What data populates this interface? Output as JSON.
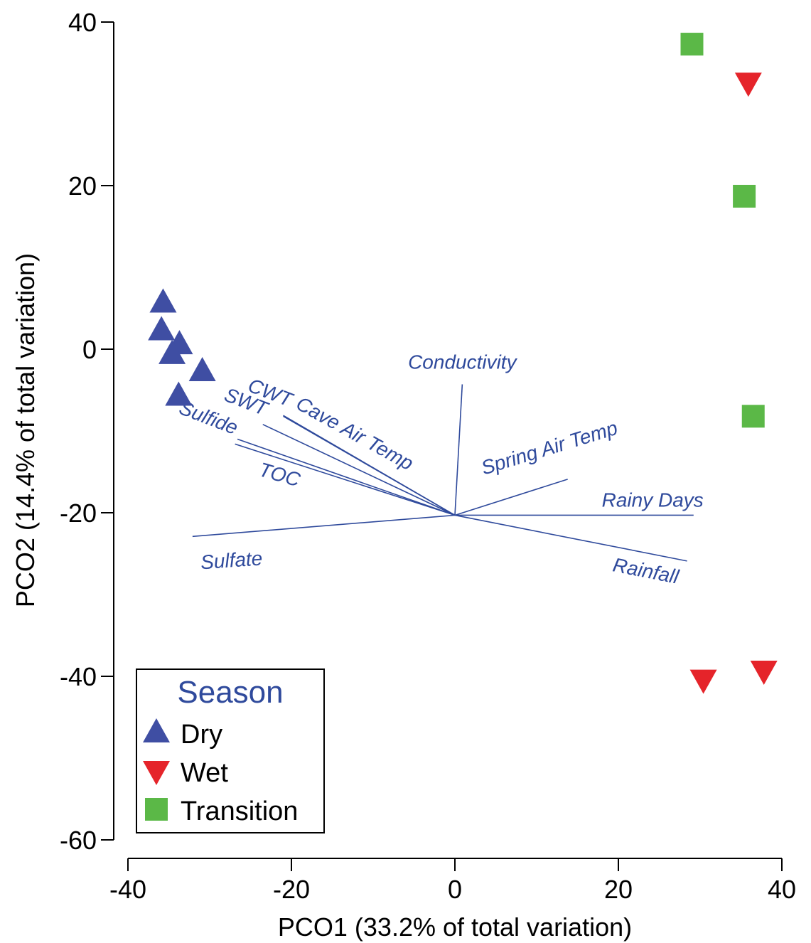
{
  "chart_data": {
    "type": "scatter",
    "title": "",
    "xlabel": "PCO1 (33.2% of total variation)",
    "ylabel": "PCO2 (14.4% of total variation)",
    "xlim": [
      -40,
      40
    ],
    "ylim": [
      -60,
      40
    ],
    "x_ticks": [
      -40,
      -20,
      0,
      20,
      40
    ],
    "y_ticks": [
      -60,
      -40,
      -20,
      0,
      20,
      40
    ],
    "x_tick_labels": [
      "-40",
      "-20",
      "0",
      "20",
      "40"
    ],
    "y_tick_labels": [
      "-60",
      "-40",
      "-20",
      "0",
      "20",
      "40"
    ],
    "grid": false,
    "legend": {
      "title": "Season",
      "position": "bottom-left",
      "entries": [
        "Dry",
        "Wet",
        "Transition"
      ]
    },
    "series": [
      {
        "name": "Dry",
        "marker": "triangle-up",
        "color": "#3f4ea3",
        "points": [
          {
            "x": -35.7,
            "y": 5.7
          },
          {
            "x": -35.9,
            "y": 2.3
          },
          {
            "x": -33.7,
            "y": 0.6
          },
          {
            "x": -34.6,
            "y": -0.6
          },
          {
            "x": -30.9,
            "y": -2.7
          },
          {
            "x": -33.8,
            "y": -5.7
          }
        ]
      },
      {
        "name": "Wet",
        "marker": "triangle-down",
        "color": "#e5242a",
        "points": [
          {
            "x": 35.9,
            "y": 32.6
          },
          {
            "x": 30.4,
            "y": -40.4
          },
          {
            "x": 37.8,
            "y": -39.3
          }
        ]
      },
      {
        "name": "Transition",
        "marker": "square",
        "color": "#5bb847",
        "points": [
          {
            "x": 29.0,
            "y": 37.3
          },
          {
            "x": 35.4,
            "y": 18.7
          },
          {
            "x": 36.5,
            "y": -8.2
          }
        ]
      }
    ],
    "vector_origin": {
      "x": 0,
      "y": -20.3
    },
    "vectors": [
      {
        "label": "Conductivity",
        "x": 0.9,
        "y": -4.3
      },
      {
        "label": "CWT",
        "x": -21.0,
        "y": -8.1
      },
      {
        "label": "Cave Air Temp",
        "x": -21.0,
        "y": -8.2
      },
      {
        "label": "SWT",
        "x": -23.5,
        "y": -9.2
      },
      {
        "label": "Sulfide",
        "x": -26.6,
        "y": -11.0
      },
      {
        "label": "TOC",
        "x": -26.9,
        "y": -11.6
      },
      {
        "label": "Spring Air Temp",
        "x": 13.8,
        "y": -15.9
      },
      {
        "label": "Rainy Days",
        "x": 29.2,
        "y": -20.3
      },
      {
        "label": "Sulfate",
        "x": -32.1,
        "y": -22.9
      },
      {
        "label": "Rainfall",
        "x": 28.4,
        "y": -25.9
      }
    ],
    "colors": {
      "dry": "#3f4ea3",
      "wet": "#e5242a",
      "transition": "#5bb847",
      "vectors": "#2f4a9c",
      "axes": "#000000"
    }
  }
}
